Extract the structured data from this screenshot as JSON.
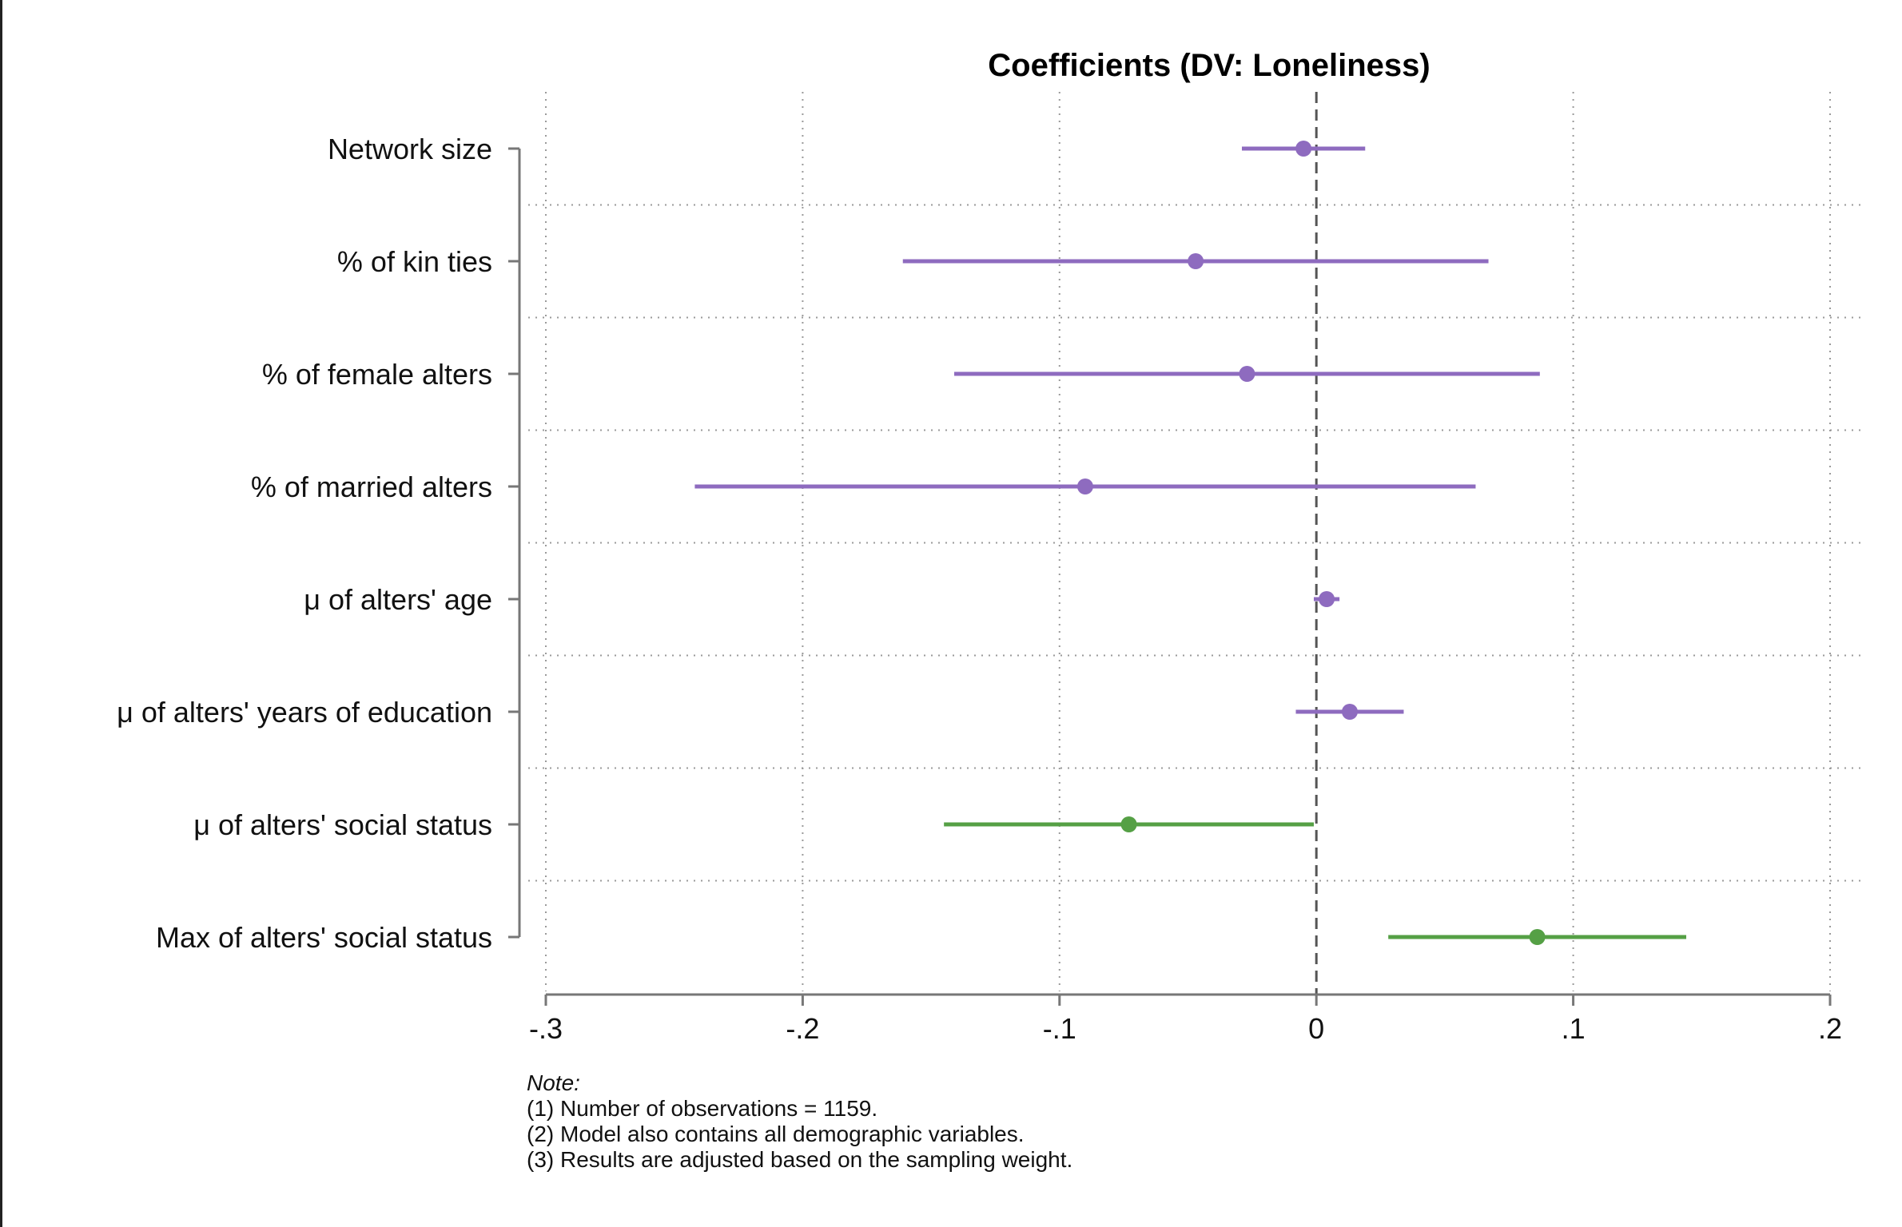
{
  "chart_data": {
    "type": "scatter",
    "subtype": "coefficient-plot",
    "title": "Coefficients (DV: Loneliness)",
    "xlim": [
      -0.3,
      0.2
    ],
    "xticks": [
      -0.3,
      -0.2,
      -0.1,
      0,
      0.1,
      0.2
    ],
    "xtick_labels": [
      "-.3",
      "-.2",
      "-.1",
      "0",
      ".1",
      ".2"
    ],
    "reference_line": 0,
    "grid": true,
    "colors": {
      "purple": "#8e6bbf",
      "green": "#55a045"
    },
    "rows": [
      {
        "label": "Network size",
        "estimate": -0.005,
        "ci_low": -0.029,
        "ci_high": 0.019,
        "color": "purple"
      },
      {
        "label": "% of kin ties",
        "estimate": -0.047,
        "ci_low": -0.161,
        "ci_high": 0.067,
        "color": "purple"
      },
      {
        "label": "% of female alters",
        "estimate": -0.027,
        "ci_low": -0.141,
        "ci_high": 0.087,
        "color": "purple"
      },
      {
        "label": "% of married alters",
        "estimate": -0.09,
        "ci_low": -0.242,
        "ci_high": 0.062,
        "color": "purple"
      },
      {
        "label": "μ of alters' age",
        "estimate": 0.004,
        "ci_low": -0.001,
        "ci_high": 0.009,
        "color": "purple"
      },
      {
        "label": "μ of alters' years of education",
        "estimate": 0.013,
        "ci_low": -0.008,
        "ci_high": 0.034,
        "color": "purple"
      },
      {
        "label": "μ of alters' social status",
        "estimate": -0.073,
        "ci_low": -0.145,
        "ci_high": -0.001,
        "color": "green"
      },
      {
        "label": "Max of alters' social status",
        "estimate": 0.086,
        "ci_low": 0.028,
        "ci_high": 0.144,
        "color": "green"
      }
    ]
  },
  "note": {
    "title": "Note:",
    "lines": [
      "(1) Number of observations = 1159.",
      "(2) Model also contains all demographic variables.",
      "(3) Results are adjusted based on the sampling weight."
    ]
  }
}
